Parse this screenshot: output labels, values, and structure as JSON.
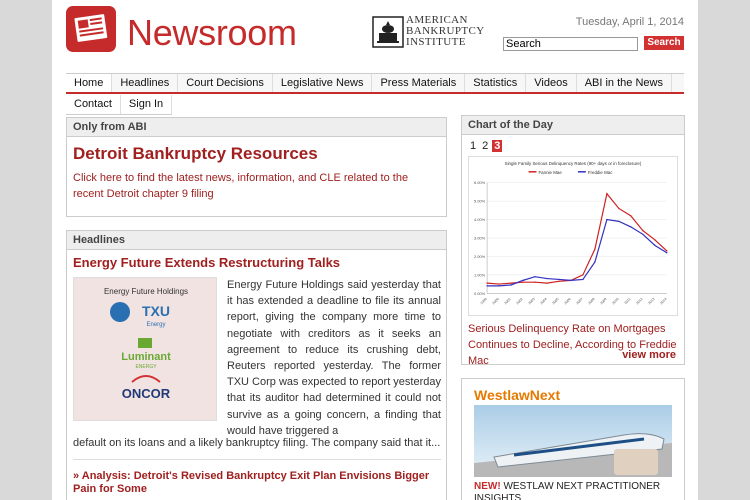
{
  "header": {
    "title": "Newsroom",
    "abi_logo_line1": "AMERICAN",
    "abi_logo_line2": "BANKRUPTCY",
    "abi_logo_line3": "INSTITUTE",
    "date": "Tuesday, April 1, 2014",
    "search_value": "Search",
    "search_button": "Search"
  },
  "nav": {
    "items": [
      "Home",
      "Headlines",
      "Court Decisions",
      "Legislative News",
      "Press Materials",
      "Statistics",
      "Videos",
      "ABI in the News"
    ],
    "items2": [
      "Contact",
      "Sign In"
    ]
  },
  "abi": {
    "heading": "Only from ABI",
    "title": "Detroit Bankruptcy Resources",
    "desc": "Click here to find the latest news, information, and CLE related to the recent Detroit chapter 9 filing"
  },
  "headlines": {
    "heading": "Headlines",
    "story_title": "Energy Future Extends Restructuring Talks",
    "image_labels": [
      "Energy Future Holdings",
      "TXU",
      "Energy",
      "Luminant",
      "ENERGY",
      "ONCOR"
    ],
    "body": "Energy Future Holdings said yesterday that it has extended a deadline to file its annual report, giving the company more time to negotiate with creditors as it seeks an agreement to reduce its crushing debt, Reuters reported yesterday. The former TXU Corp was expected to report yesterday that its auditor had determined it could not survive as a going concern, a finding that would have triggered a",
    "tail": "default on its loans and a likely bankruptcy filing. The company said that it...",
    "bullet": "Analysis: Detroit's Revised Bankruptcy Exit Plan Envisions Bigger Pain for Some"
  },
  "chart": {
    "heading": "Chart of the Day",
    "pages": [
      "1",
      "2",
      "3"
    ],
    "current_page": "3",
    "inner_title": "Single Family Serious Delinquency Rates (90+ days or in foreclosure)",
    "legend": [
      "Fannie Mae",
      "Freddie Mac"
    ],
    "caption": "Serious Delinquency Rate on Mortgages Continues to Decline, According to Freddie Mac",
    "view_more": "view more"
  },
  "chart_data": {
    "type": "line",
    "title": "Single Family Serious Delinquency Rates (90+ days or in foreclosure)",
    "x": [
      "1999",
      "2000",
      "2001",
      "2002",
      "2003",
      "2004",
      "2005",
      "2006",
      "2007",
      "2008",
      "2009",
      "2010",
      "2011",
      "2012",
      "2013",
      "2014"
    ],
    "series": [
      {
        "name": "Fannie Mae",
        "values": [
          0.55,
          0.5,
          0.55,
          0.6,
          0.6,
          0.55,
          0.65,
          0.7,
          1.0,
          2.4,
          5.4,
          4.6,
          4.2,
          3.4,
          2.9,
          2.3
        ]
      },
      {
        "name": "Freddie Mac",
        "values": [
          0.4,
          0.4,
          0.45,
          0.7,
          0.9,
          0.8,
          0.75,
          0.7,
          0.75,
          1.7,
          4.0,
          3.9,
          3.6,
          3.2,
          2.6,
          2.2
        ]
      }
    ],
    "ylim": [
      0,
      6
    ],
    "colors": {
      "Fannie Mae": "#d02020",
      "Freddie Mac": "#3030c0"
    }
  },
  "ad": {
    "logo": "WestlawNext",
    "text_new": "NEW!",
    "text": "WESTLAW NEXT PRACTITIONER INSIGHTS"
  }
}
